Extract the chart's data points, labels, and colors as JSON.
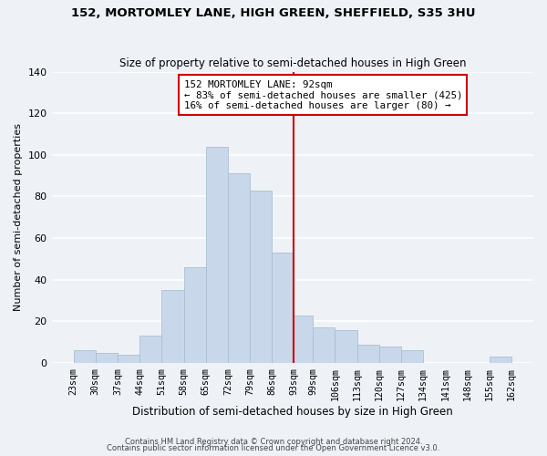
{
  "title": "152, MORTOMLEY LANE, HIGH GREEN, SHEFFIELD, S35 3HU",
  "subtitle": "Size of property relative to semi-detached houses in High Green",
  "xlabel": "Distribution of semi-detached houses by size in High Green",
  "ylabel": "Number of semi-detached properties",
  "bar_color": "#c8d8ea",
  "bar_edge_color": "#a8bfd0",
  "bin_edges": [
    23,
    30,
    37,
    44,
    51,
    58,
    65,
    72,
    79,
    86,
    93,
    99,
    106,
    113,
    120,
    127,
    134,
    141,
    148,
    155,
    162
  ],
  "bin_labels": [
    "23sqm",
    "30sqm",
    "37sqm",
    "44sqm",
    "51sqm",
    "58sqm",
    "65sqm",
    "72sqm",
    "79sqm",
    "86sqm",
    "93sqm",
    "99sqm",
    "106sqm",
    "113sqm",
    "120sqm",
    "127sqm",
    "134sqm",
    "141sqm",
    "148sqm",
    "155sqm",
    "162sqm"
  ],
  "heights": [
    6,
    5,
    4,
    13,
    35,
    46,
    104,
    91,
    83,
    53,
    23,
    17,
    16,
    9,
    8,
    6,
    0,
    0,
    0,
    3
  ],
  "vline_x": 93,
  "vline_color": "#cc0000",
  "annotation_line1": "152 MORTOMLEY LANE: 92sqm",
  "annotation_line2": "← 83% of semi-detached houses are smaller (425)",
  "annotation_line3": "16% of semi-detached houses are larger (80) →",
  "annotation_box_color": "white",
  "annotation_box_edge": "#cc0000",
  "ylim": [
    0,
    140
  ],
  "yticks": [
    0,
    20,
    40,
    60,
    80,
    100,
    120,
    140
  ],
  "footer1": "Contains HM Land Registry data © Crown copyright and database right 2024.",
  "footer2": "Contains public sector information licensed under the Open Government Licence v3.0.",
  "background_color": "#eef2f7"
}
